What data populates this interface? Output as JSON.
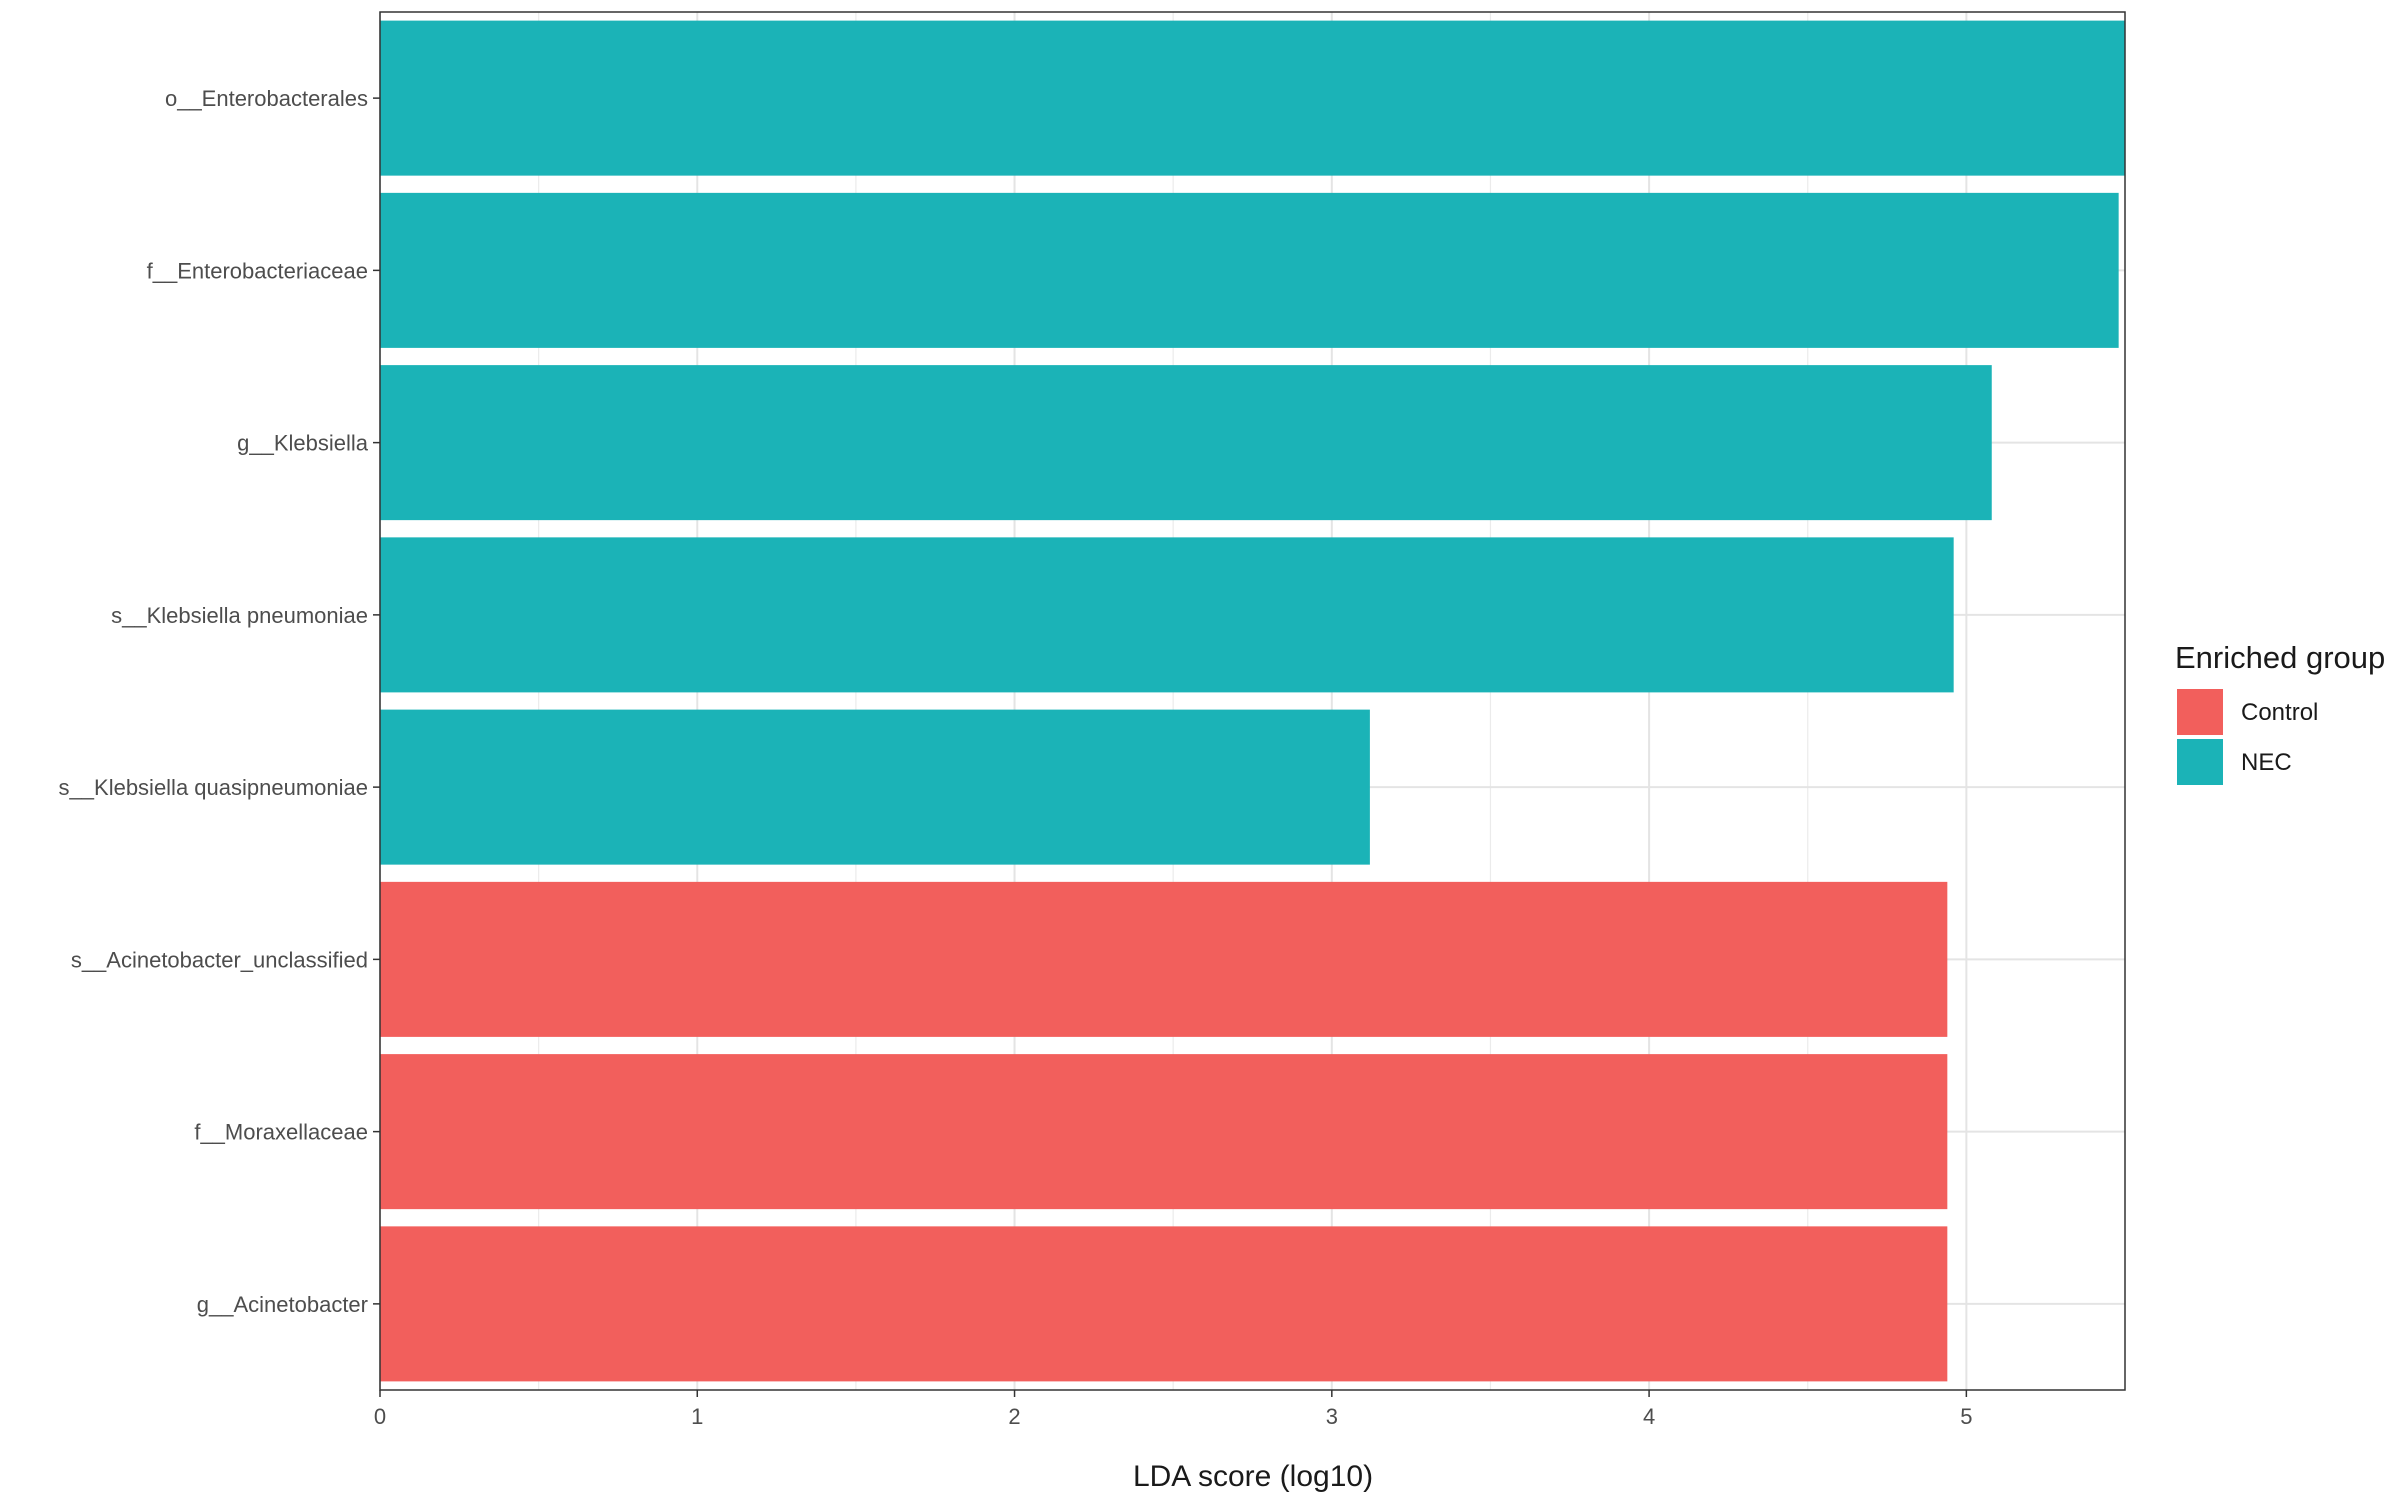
{
  "chart_data": {
    "type": "bar",
    "orientation": "horizontal",
    "title": "",
    "xlabel": "LDA score (log10)",
    "ylabel": "",
    "xlim": [
      0,
      5.5
    ],
    "xticks": [
      "0",
      "1",
      "2",
      "3",
      "4",
      "5"
    ],
    "grid": true,
    "legend": {
      "title": "Enriched group",
      "position": "right",
      "entries": [
        {
          "name": "Control",
          "color": "#F25F5C"
        },
        {
          "name": "NEC",
          "color": "#1BB3B7"
        }
      ]
    },
    "categories": [
      "o__Enterobacterales",
      "f__Enterobacteriaceae",
      "g__Klebsiella",
      "s__Klebsiella pneumoniae",
      "s__Klebsiella quasipneumoniae",
      "s__Acinetobacter_unclassified",
      "f__Moraxellaceae",
      "g__Acinetobacter"
    ],
    "values": [
      5.5,
      5.48,
      5.08,
      4.96,
      3.12,
      4.94,
      4.94,
      4.94
    ],
    "groups": [
      "NEC",
      "NEC",
      "NEC",
      "NEC",
      "NEC",
      "Control",
      "Control",
      "Control"
    ]
  }
}
